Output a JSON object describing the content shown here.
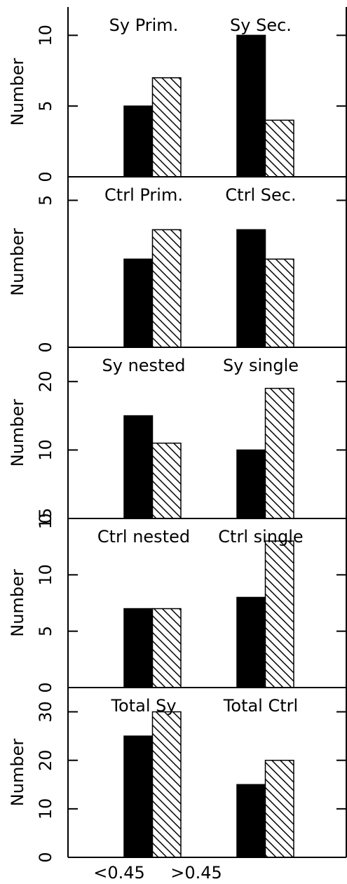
{
  "chart_data": [
    {
      "type": "bar",
      "y_label": "Number",
      "categories": [
        "Sy Prim.",
        "Sy Sec."
      ],
      "ylim": [
        0,
        12
      ],
      "yticks": [
        0,
        5,
        10
      ],
      "series": [
        {
          "color": "#000000",
          "values": [
            5,
            10
          ]
        },
        {
          "color": "#000000",
          "pattern": "hatch",
          "values": [
            7,
            4
          ]
        }
      ]
    },
    {
      "type": "bar",
      "y_label": "Number",
      "categories": [
        "Ctrl Prim.",
        "Ctrl Sec."
      ],
      "ylim": [
        0,
        5.8
      ],
      "yticks": [
        0,
        5
      ],
      "series": [
        {
          "color": "#000000",
          "values": [
            3,
            4
          ]
        },
        {
          "color": "#000000",
          "pattern": "hatch",
          "values": [
            4,
            3
          ]
        }
      ]
    },
    {
      "type": "bar",
      "y_label": "Number",
      "categories": [
        "Sy nested",
        "Sy single"
      ],
      "ylim": [
        0,
        25
      ],
      "yticks": [
        0,
        10,
        20
      ],
      "series": [
        {
          "color": "#000000",
          "values": [
            15,
            10
          ]
        },
        {
          "color": "#000000",
          "pattern": "hatch",
          "values": [
            11,
            19
          ]
        }
      ]
    },
    {
      "type": "bar",
      "y_label": "Number",
      "categories": [
        "Ctrl nested",
        "Ctrl single"
      ],
      "ylim": [
        0,
        15
      ],
      "yticks": [
        0,
        5,
        10,
        15
      ],
      "series": [
        {
          "color": "#000000",
          "values": [
            7,
            8
          ]
        },
        {
          "color": "#000000",
          "pattern": "hatch",
          "values": [
            7,
            13
          ]
        }
      ]
    },
    {
      "type": "bar",
      "y_label": "Number",
      "categories": [
        "Total Sy",
        "Total Ctrl"
      ],
      "ylim": [
        0,
        35
      ],
      "yticks": [
        0,
        10,
        20,
        30
      ],
      "series": [
        {
          "color": "#000000",
          "values": [
            25,
            15
          ]
        },
        {
          "color": "#000000",
          "pattern": "hatch",
          "values": [
            30,
            20
          ]
        }
      ]
    }
  ],
  "x_axis": {
    "labels": [
      "<0.45",
      ">0.45"
    ]
  }
}
